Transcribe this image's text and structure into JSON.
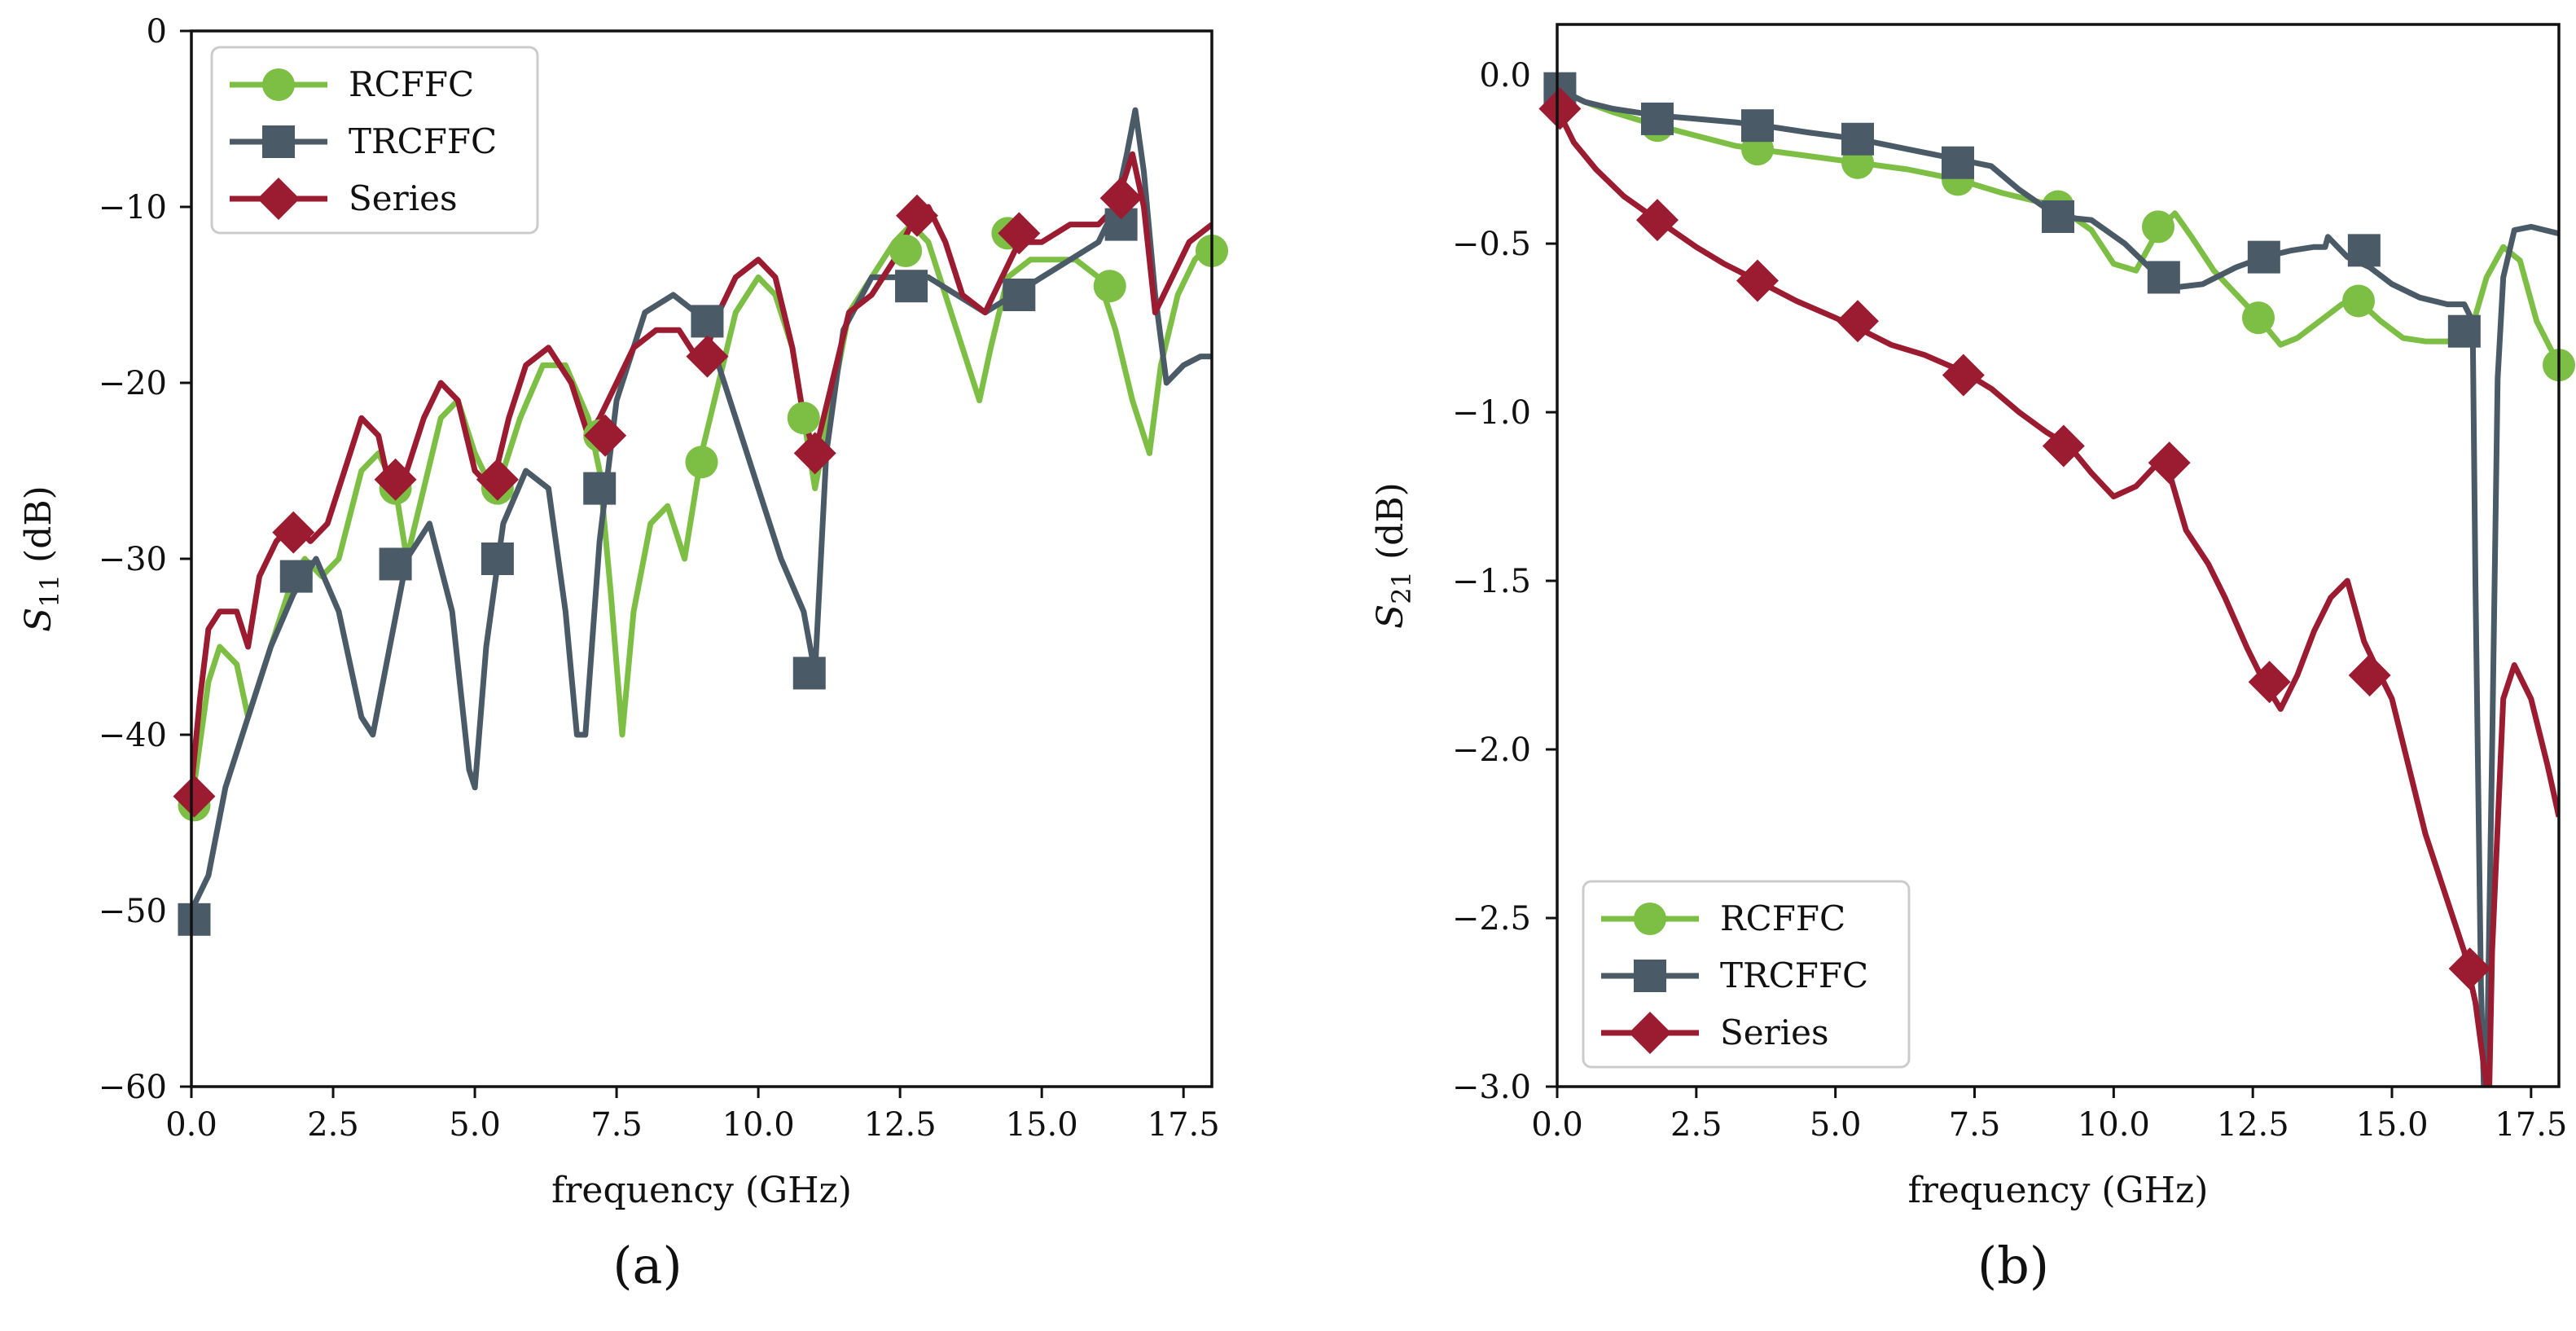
{
  "colors": {
    "RCFFC": "#7dbe45",
    "TRCFFC": "#4a5a66",
    "Series": "#9b1b30"
  },
  "chart_data": [
    {
      "type": "line",
      "panel_label": "(a)",
      "xlabel": "frequency (GHz)",
      "ylabel_main": "S",
      "ylabel_sub": "11",
      "ylabel_unit": " (dB)",
      "xlim": [
        0,
        18
      ],
      "ylim": [
        -60,
        0
      ],
      "xticks": [
        0,
        2.5,
        5,
        7.5,
        10,
        12.5,
        15,
        17.5
      ],
      "xtick_labels": [
        "0.0",
        "2.5",
        "5.0",
        "7.5",
        "10.0",
        "12.5",
        "15.0",
        "17.5"
      ],
      "yticks": [
        0,
        -10,
        -20,
        -30,
        -40,
        -50,
        -60
      ],
      "ytick_labels": [
        "0",
        "−10",
        "−20",
        "−30",
        "−40",
        "−50",
        "−60"
      ],
      "legend_position": "top-left",
      "series": [
        {
          "name": "RCFFC",
          "marker": "circle",
          "x": [
            0,
            0.3,
            0.5,
            0.8,
            1.0,
            1.3,
            1.6,
            1.8,
            2.0,
            2.3,
            2.6,
            3.0,
            3.3,
            3.6,
            3.8,
            4.1,
            4.4,
            4.7,
            5.0,
            5.3,
            5.5,
            5.8,
            6.2,
            6.6,
            7.0,
            7.2,
            7.4,
            7.6,
            7.8,
            8.1,
            8.4,
            8.7,
            9.0,
            9.3,
            9.6,
            10.0,
            10.3,
            10.6,
            10.8,
            11.0,
            11.3,
            11.6,
            12.0,
            12.4,
            12.7,
            13.0,
            13.3,
            13.6,
            13.9,
            14.1,
            14.4,
            14.8,
            15.2,
            15.6,
            16.0,
            16.3,
            16.6,
            16.9,
            17.1,
            17.4,
            17.7,
            18.0
          ],
          "y": [
            -44,
            -37,
            -35,
            -36,
            -39,
            -36,
            -33,
            -31,
            -30,
            -31,
            -30,
            -25,
            -24,
            -26,
            -30,
            -26,
            -22,
            -21,
            -24,
            -26,
            -25,
            -22,
            -19,
            -19,
            -22,
            -25,
            -32,
            -40,
            -33,
            -28,
            -27,
            -30,
            -24,
            -20,
            -16,
            -14,
            -15,
            -18,
            -22,
            -26,
            -21,
            -16,
            -14,
            -12,
            -11,
            -12,
            -15,
            -18,
            -21,
            -18,
            -14,
            -13,
            -13,
            -13,
            -14,
            -17,
            -21,
            -24,
            -19,
            -15,
            -13,
            -12
          ],
          "marker_x": [
            0.05,
            1.85,
            3.6,
            5.4,
            7.2,
            9.0,
            10.8,
            12.6,
            14.4,
            16.2,
            18.0
          ],
          "marker_y": [
            -44,
            -31,
            -26,
            -26,
            -23,
            -24.5,
            -22,
            -12.5,
            -11.5,
            -14.5,
            -12.5
          ]
        },
        {
          "name": "TRCFFC",
          "marker": "square",
          "x": [
            0,
            0.3,
            0.6,
            1.0,
            1.4,
            1.8,
            2.2,
            2.6,
            3.0,
            3.2,
            3.5,
            3.8,
            4.2,
            4.6,
            4.9,
            5.0,
            5.2,
            5.5,
            5.9,
            6.3,
            6.6,
            6.8,
            6.95,
            7.2,
            7.5,
            8.0,
            8.5,
            8.9,
            9.2,
            9.6,
            10.0,
            10.4,
            10.8,
            11.0,
            11.2,
            11.5,
            12.0,
            12.5,
            13.0,
            13.5,
            14.0,
            14.5,
            15.0,
            15.5,
            16.0,
            16.3,
            16.5,
            16.65,
            16.8,
            17.0,
            17.2,
            17.5,
            17.8,
            18.0
          ],
          "y": [
            -50,
            -48,
            -43,
            -39,
            -35,
            -32,
            -30,
            -33,
            -39,
            -40,
            -35,
            -30,
            -28,
            -33,
            -42,
            -43,
            -35,
            -28,
            -25,
            -26,
            -33,
            -40,
            -40,
            -29,
            -21,
            -16,
            -15,
            -16,
            -18,
            -22,
            -26,
            -30,
            -33,
            -36.5,
            -24,
            -17,
            -14,
            -14,
            -14,
            -15,
            -16,
            -15,
            -14,
            -13,
            -12,
            -10,
            -7,
            -4.5,
            -8,
            -15,
            -20,
            -19,
            -18.5,
            -18.5
          ],
          "marker_x": [
            0.05,
            1.85,
            3.6,
            5.4,
            7.2,
            9.1,
            10.9,
            12.7,
            14.6,
            16.4
          ],
          "marker_y": [
            -50.5,
            -31,
            -30.3,
            -30,
            -26,
            -16.5,
            -36.5,
            -14.5,
            -15,
            -11
          ]
        },
        {
          "name": "Series",
          "marker": "diamond",
          "x": [
            0,
            0.15,
            0.3,
            0.5,
            0.8,
            1.0,
            1.2,
            1.5,
            1.8,
            2.1,
            2.4,
            2.7,
            3.0,
            3.3,
            3.5,
            3.8,
            4.1,
            4.4,
            4.7,
            5.0,
            5.3,
            5.6,
            5.9,
            6.3,
            6.7,
            7.0,
            7.2,
            7.5,
            7.8,
            8.2,
            8.6,
            9.0,
            9.3,
            9.6,
            10.0,
            10.3,
            10.6,
            10.8,
            11.0,
            11.3,
            11.6,
            12.0,
            12.4,
            12.7,
            13.0,
            13.3,
            13.6,
            14.0,
            14.3,
            14.6,
            15.0,
            15.5,
            16.0,
            16.3,
            16.6,
            16.8,
            17.0,
            17.3,
            17.6,
            18.0
          ],
          "y": [
            -43,
            -38,
            -34,
            -33,
            -33,
            -35,
            -31,
            -29,
            -28,
            -29,
            -28,
            -25,
            -22,
            -23,
            -26,
            -25,
            -22,
            -20,
            -21,
            -25,
            -26,
            -22,
            -19,
            -18,
            -20,
            -23,
            -22,
            -20,
            -18,
            -17,
            -17,
            -19,
            -16,
            -14,
            -13,
            -14,
            -18,
            -22,
            -24,
            -20,
            -16,
            -15,
            -13,
            -11,
            -10,
            -12,
            -15,
            -16,
            -14,
            -12,
            -12,
            -11,
            -11,
            -10,
            -7,
            -10,
            -16,
            -14,
            -12,
            -11
          ],
          "marker_x": [
            0.05,
            1.8,
            3.6,
            5.4,
            7.3,
            9.1,
            11.0,
            12.8,
            14.6,
            16.4
          ],
          "marker_y": [
            -43.5,
            -28.5,
            -25.5,
            -25.5,
            -23,
            -18.5,
            -24,
            -10.5,
            -11.5,
            -9.5
          ]
        }
      ]
    },
    {
      "type": "line",
      "panel_label": "(b)",
      "xlabel": "frequency (GHz)",
      "ylabel_main": "S",
      "ylabel_sub": "21",
      "ylabel_unit": " (dB)",
      "xlim": [
        0,
        18
      ],
      "ylim": [
        -3.0,
        0.15
      ],
      "xticks": [
        0,
        2.5,
        5,
        7.5,
        10,
        12.5,
        15,
        17.5
      ],
      "xtick_labels": [
        "0.0",
        "2.5",
        "5.0",
        "7.5",
        "10.0",
        "12.5",
        "15.0",
        "17.5"
      ],
      "yticks": [
        0.0,
        -0.5,
        -1.0,
        -1.5,
        -2.0,
        -2.5,
        -3.0
      ],
      "ytick_labels": [
        "0.0",
        "−0.5",
        "−1.0",
        "−1.5",
        "−2.0",
        "−2.5",
        "−3.0"
      ],
      "legend_position": "bottom-left",
      "series": [
        {
          "name": "RCFFC",
          "marker": "circle",
          "x": [
            0,
            0.5,
            1.0,
            1.8,
            2.5,
            3.2,
            3.6,
            4.5,
            5.4,
            6.3,
            7.2,
            8.0,
            9.0,
            9.6,
            10.0,
            10.4,
            10.8,
            11.1,
            11.4,
            11.8,
            12.2,
            12.6,
            13.0,
            13.3,
            13.7,
            14.1,
            14.4,
            14.8,
            15.2,
            15.6,
            16.0,
            16.4,
            16.7,
            17.0,
            17.3,
            17.6,
            18.0
          ],
          "y": [
            -0.04,
            -0.08,
            -0.11,
            -0.15,
            -0.18,
            -0.21,
            -0.22,
            -0.24,
            -0.26,
            -0.28,
            -0.31,
            -0.35,
            -0.39,
            -0.46,
            -0.56,
            -0.58,
            -0.46,
            -0.41,
            -0.48,
            -0.58,
            -0.65,
            -0.72,
            -0.8,
            -0.78,
            -0.73,
            -0.68,
            -0.67,
            -0.73,
            -0.78,
            -0.79,
            -0.79,
            -0.77,
            -0.6,
            -0.51,
            -0.55,
            -0.73,
            -0.86
          ],
          "marker_x": [
            0.05,
            1.8,
            3.6,
            5.4,
            7.2,
            9.0,
            10.8,
            12.6,
            14.4,
            18.0
          ],
          "marker_y": [
            -0.05,
            -0.15,
            -0.22,
            -0.26,
            -0.31,
            -0.39,
            -0.45,
            -0.72,
            -0.67,
            -0.86
          ]
        },
        {
          "name": "TRCFFC",
          "marker": "square",
          "x": [
            0,
            0.5,
            1.0,
            1.8,
            2.5,
            3.2,
            3.7,
            4.5,
            5.4,
            6.3,
            7.2,
            7.8,
            8.3,
            9.0,
            9.6,
            10.2,
            10.7,
            11.1,
            11.6,
            12.2,
            12.7,
            13.2,
            13.6,
            13.8,
            13.85,
            14.2,
            14.6,
            15.0,
            15.5,
            16.0,
            16.3,
            16.45,
            16.5,
            16.6,
            16.65,
            16.7,
            16.8,
            16.9,
            17.0,
            17.2,
            17.5,
            18.0
          ],
          "y": [
            -0.04,
            -0.08,
            -0.1,
            -0.12,
            -0.13,
            -0.14,
            -0.15,
            -0.17,
            -0.19,
            -0.22,
            -0.25,
            -0.27,
            -0.34,
            -0.42,
            -0.43,
            -0.5,
            -0.58,
            -0.63,
            -0.62,
            -0.57,
            -0.54,
            -0.52,
            -0.51,
            -0.51,
            -0.48,
            -0.54,
            -0.57,
            -0.62,
            -0.66,
            -0.68,
            -0.68,
            -0.73,
            -1.5,
            -2.7,
            -3.0,
            -3.0,
            -2.0,
            -0.9,
            -0.6,
            -0.46,
            -0.45,
            -0.47
          ],
          "marker_x": [
            0.05,
            1.8,
            3.6,
            5.4,
            7.2,
            9.0,
            10.9,
            12.7,
            14.5,
            16.3
          ],
          "marker_y": [
            -0.04,
            -0.13,
            -0.15,
            -0.19,
            -0.26,
            -0.42,
            -0.6,
            -0.54,
            -0.52,
            -0.76
          ]
        },
        {
          "name": "Series",
          "marker": "diamond",
          "x": [
            0,
            0.3,
            0.7,
            1.2,
            1.8,
            2.5,
            3.0,
            3.6,
            4.3,
            5.0,
            5.4,
            6.0,
            6.6,
            7.3,
            7.8,
            8.3,
            8.8,
            9.2,
            9.6,
            10.0,
            10.4,
            10.8,
            11.0,
            11.3,
            11.7,
            12.0,
            12.4,
            12.7,
            13.0,
            13.3,
            13.6,
            13.9,
            14.2,
            14.5,
            14.7,
            15.0,
            15.3,
            15.6,
            16.0,
            16.3,
            16.5,
            16.7,
            16.75,
            16.8,
            17.0,
            17.2,
            17.5,
            17.8,
            18.0
          ],
          "y": [
            -0.1,
            -0.2,
            -0.28,
            -0.36,
            -0.43,
            -0.51,
            -0.56,
            -0.61,
            -0.67,
            -0.72,
            -0.75,
            -0.8,
            -0.83,
            -0.88,
            -0.93,
            -1.0,
            -1.06,
            -1.1,
            -1.18,
            -1.25,
            -1.22,
            -1.15,
            -1.18,
            -1.35,
            -1.45,
            -1.55,
            -1.7,
            -1.8,
            -1.88,
            -1.78,
            -1.65,
            -1.55,
            -1.5,
            -1.68,
            -1.75,
            -1.85,
            -2.05,
            -2.25,
            -2.45,
            -2.6,
            -2.75,
            -3.0,
            -3.0,
            -2.6,
            -1.85,
            -1.75,
            -1.85,
            -2.05,
            -2.2
          ],
          "marker_x": [
            0.05,
            1.8,
            3.6,
            5.4,
            7.3,
            9.1,
            11.0,
            12.8,
            14.6,
            16.4
          ],
          "marker_y": [
            -0.1,
            -0.43,
            -0.61,
            -0.73,
            -0.89,
            -1.1,
            -1.15,
            -1.8,
            -1.78,
            -2.65
          ]
        }
      ]
    }
  ]
}
